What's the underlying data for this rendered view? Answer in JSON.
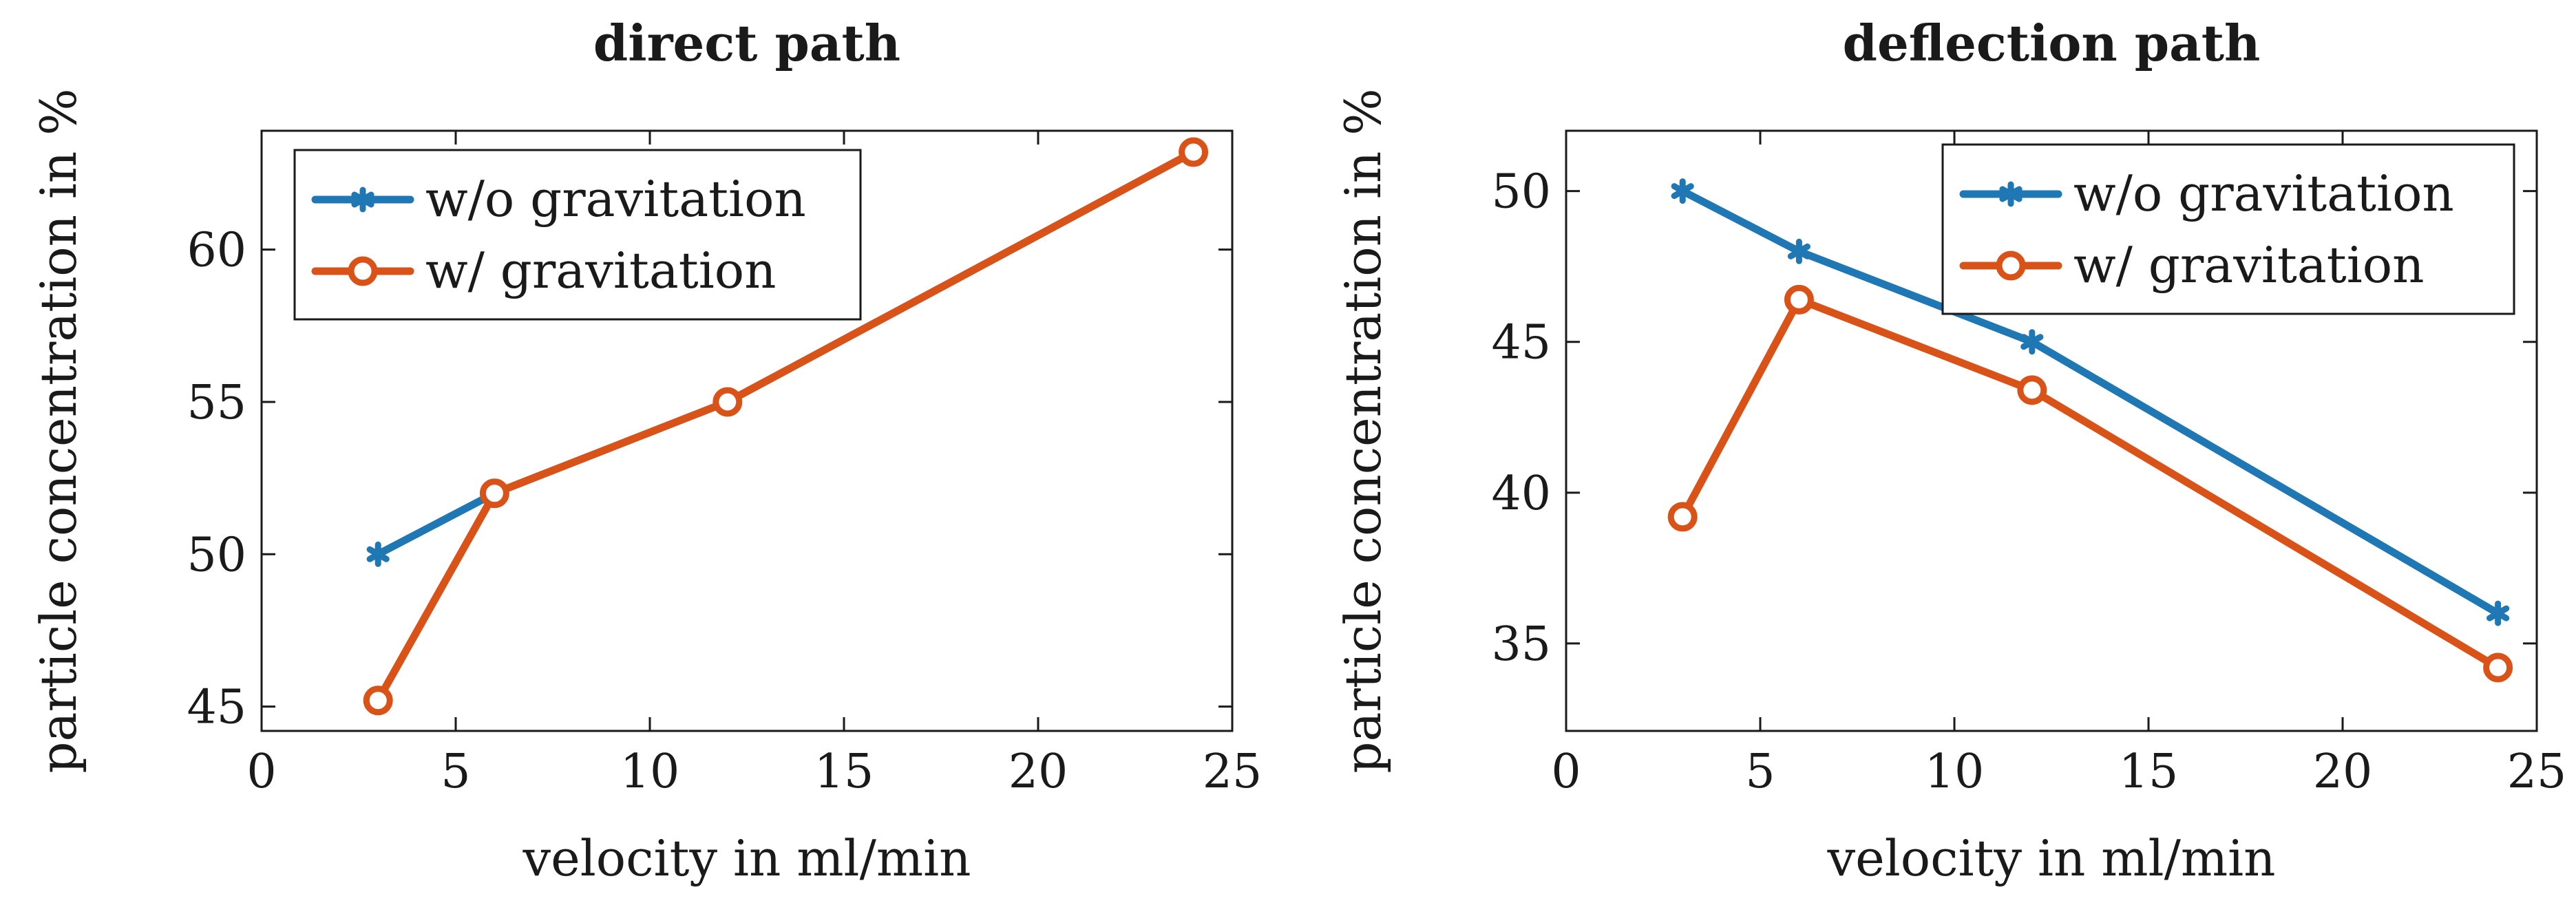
{
  "chart_data": [
    {
      "type": "line",
      "title": "direct path",
      "xlabel": "velocity in ml/min",
      "ylabel": "particle concentration in %",
      "xlim": [
        0,
        25
      ],
      "ylim": [
        44.2,
        63.9
      ],
      "xticks": [
        0,
        5,
        10,
        15,
        20,
        25
      ],
      "yticks": [
        45,
        50,
        55,
        60
      ],
      "grid": false,
      "legend_position": "top-left",
      "series": [
        {
          "name": "w/o gravitation",
          "color": "#1f77b4",
          "marker": "asterisk",
          "x": [
            3,
            6,
            12,
            24
          ],
          "y": [
            50,
            52,
            55,
            63.2
          ]
        },
        {
          "name": "w/ gravitation",
          "color": "#d95319",
          "marker": "circle",
          "x": [
            3,
            6,
            12,
            24
          ],
          "y": [
            45.2,
            52,
            55,
            63.2
          ]
        }
      ]
    },
    {
      "type": "line",
      "title": "deflection path",
      "xlabel": "velocity in ml/min",
      "ylabel": "particle concentration in %",
      "xlim": [
        0,
        25
      ],
      "ylim": [
        32.1,
        52.0
      ],
      "xticks": [
        0,
        5,
        10,
        15,
        20,
        25
      ],
      "yticks": [
        35,
        40,
        45,
        50
      ],
      "grid": false,
      "legend_position": "top-right",
      "series": [
        {
          "name": "w/o gravitation",
          "color": "#1f77b4",
          "marker": "asterisk",
          "x": [
            3,
            6,
            12,
            24
          ],
          "y": [
            50,
            48,
            45,
            36
          ]
        },
        {
          "name": "w/ gravitation",
          "color": "#d95319",
          "marker": "circle",
          "x": [
            3,
            6,
            12,
            24
          ],
          "y": [
            39.2,
            46.4,
            43.4,
            34.2
          ]
        }
      ]
    }
  ]
}
